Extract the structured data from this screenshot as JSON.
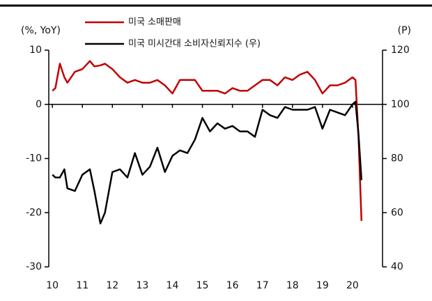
{
  "chart_data": {
    "type": "line",
    "y_label": "(%, YoY)",
    "y2_label": "(P)",
    "x": [
      10.0,
      10.1,
      10.25,
      10.4,
      10.5,
      10.75,
      11.0,
      11.25,
      11.4,
      11.6,
      11.75,
      12.0,
      12.25,
      12.5,
      12.75,
      13.0,
      13.25,
      13.5,
      13.75,
      14.0,
      14.25,
      14.5,
      14.75,
      15.0,
      15.25,
      15.5,
      15.75,
      16.0,
      16.25,
      16.5,
      16.75,
      17.0,
      17.25,
      17.5,
      17.75,
      18.0,
      18.25,
      18.5,
      18.75,
      19.0,
      19.25,
      19.5,
      19.75,
      20.0,
      20.1,
      20.2,
      20.3
    ],
    "series": [
      {
        "name": "미국 소매판매",
        "color": "#c00000",
        "values": [
          2.5,
          3,
          7.5,
          5,
          4,
          6,
          6.5,
          8,
          7,
          7.2,
          7.5,
          6.5,
          5,
          4,
          4.5,
          4,
          4,
          4.5,
          3.5,
          2,
          4.5,
          4.5,
          4.5,
          2.5,
          2.5,
          2.5,
          2,
          3,
          2.5,
          2.5,
          3.5,
          4.5,
          4.5,
          3.5,
          5,
          4.5,
          5.5,
          6,
          4.5,
          2,
          3.5,
          3.5,
          4,
          5,
          4.5,
          -6,
          -21.5
        ]
      },
      {
        "name": "미국 미시간대 소비자신뢰지수 (우)",
        "color": "#000000",
        "axis": "y2",
        "values": [
          74,
          73,
          73,
          76,
          69,
          68,
          74,
          76,
          68,
          56,
          60,
          75,
          76,
          73,
          82,
          74,
          77,
          84,
          75,
          81,
          83,
          82,
          87,
          95,
          90,
          93,
          91,
          92,
          90,
          90,
          88,
          98,
          96,
          95,
          99,
          98,
          98,
          98,
          99,
          91,
          98,
          97,
          96,
          100,
          101,
          89,
          72
        ]
      }
    ],
    "xlim": [
      9.88,
      21.0
    ],
    "xticks": [
      10,
      11,
      12,
      13,
      14,
      15,
      16,
      17,
      18,
      19,
      20
    ],
    "ylim": [
      -30,
      10
    ],
    "yticks": [
      -30,
      -20,
      -10,
      0,
      10
    ],
    "y2lim": [
      40,
      120
    ],
    "y2ticks": [
      40,
      60,
      80,
      100,
      120
    ]
  }
}
